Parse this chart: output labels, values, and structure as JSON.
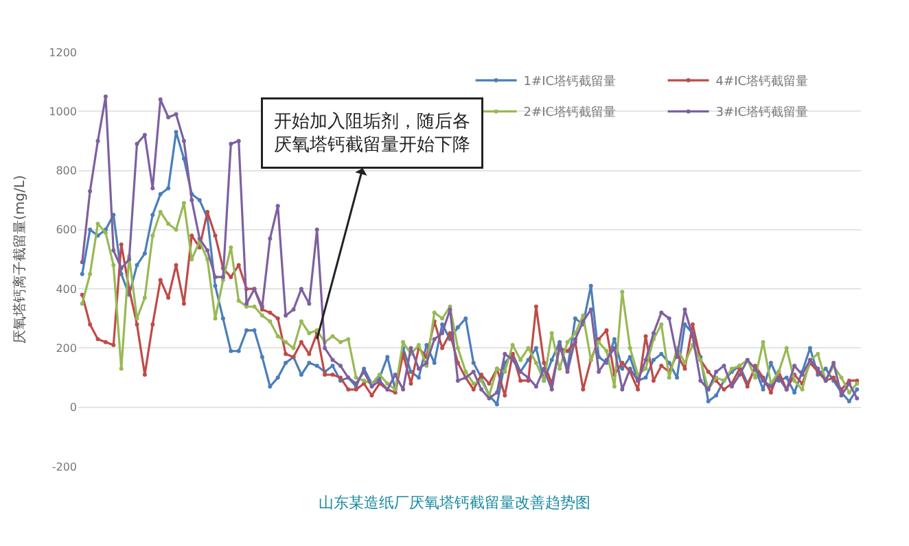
{
  "chart_data": {
    "type": "line",
    "title": "山东某造纸厂厌氧塔钙截留量改善趋势图",
    "ylabel": "厌氧塔钙离子截留量(mg/L)",
    "categories": [
      null,
      null,
      null,
      null,
      null,
      null,
      null,
      null,
      null,
      null,
      null,
      null,
      null,
      null,
      null,
      null,
      null,
      null,
      null,
      null,
      null,
      null,
      null,
      null,
      null,
      null,
      null,
      null,
      null,
      null,
      null,
      null,
      null,
      null,
      null,
      null,
      null,
      null,
      null,
      null,
      null,
      null,
      null,
      null,
      null,
      null,
      null,
      null,
      null,
      null,
      null,
      null,
      null,
      null,
      null,
      null,
      null,
      null,
      null,
      null,
      null,
      null,
      null,
      null,
      null,
      null,
      null,
      null,
      null,
      null,
      null,
      null,
      null,
      null,
      null,
      null,
      null,
      null,
      null,
      null,
      null,
      null,
      null,
      null,
      null,
      null,
      null,
      null,
      null,
      null,
      null,
      null,
      null,
      null,
      null,
      null,
      null,
      null,
      null,
      null
    ],
    "series": [
      {
        "name": "1#IC塔钙截留量",
        "color": "#4a7ebb",
        "values": [
          450,
          600,
          580,
          600,
          650,
          450,
          380,
          480,
          520,
          650,
          720,
          740,
          930,
          840,
          720,
          700,
          640,
          410,
          300,
          190,
          190,
          260,
          260,
          170,
          70,
          100,
          150,
          170,
          110,
          150,
          140,
          120,
          140,
          90,
          100,
          70,
          130,
          80,
          100,
          170,
          60,
          200,
          120,
          100,
          210,
          150,
          280,
          230,
          270,
          300,
          150,
          100,
          40,
          10,
          150,
          180,
          120,
          160,
          200,
          90,
          160,
          220,
          130,
          300,
          280,
          410,
          170,
          150,
          230,
          130,
          170,
          90,
          100,
          160,
          180,
          150,
          100,
          280,
          250,
          170,
          20,
          40,
          90,
          120,
          140,
          80,
          130,
          60,
          150,
          90,
          100,
          50,
          120,
          200,
          110,
          130,
          90,
          50,
          20,
          60
        ]
      },
      {
        "name": "4#IC塔钙截留量",
        "color": "#be4b48",
        "values": [
          380,
          280,
          230,
          220,
          210,
          550,
          400,
          280,
          110,
          280,
          430,
          370,
          480,
          350,
          580,
          540,
          660,
          580,
          470,
          440,
          480,
          400,
          400,
          330,
          320,
          300,
          180,
          170,
          220,
          180,
          250,
          110,
          110,
          100,
          60,
          60,
          80,
          40,
          80,
          60,
          50,
          180,
          80,
          200,
          170,
          290,
          200,
          250,
          150,
          100,
          60,
          110,
          80,
          130,
          40,
          180,
          90,
          90,
          340,
          150,
          80,
          200,
          190,
          220,
          60,
          160,
          230,
          260,
          110,
          150,
          120,
          60,
          240,
          90,
          140,
          120,
          180,
          130,
          280,
          160,
          120,
          90,
          60,
          80,
          130,
          70,
          140,
          100,
          50,
          120,
          60,
          110,
          80,
          150,
          120,
          90,
          100,
          60,
          90,
          90
        ]
      },
      {
        "name": "2#IC塔钙截留量",
        "color": "#98b954",
        "values": [
          350,
          450,
          620,
          590,
          480,
          130,
          510,
          300,
          370,
          580,
          660,
          620,
          600,
          690,
          500,
          560,
          500,
          300,
          430,
          540,
          360,
          340,
          340,
          310,
          290,
          240,
          220,
          200,
          290,
          250,
          260,
          220,
          240,
          220,
          230,
          100,
          90,
          80,
          110,
          80,
          60,
          220,
          180,
          210,
          140,
          320,
          300,
          340,
          200,
          120,
          80,
          90,
          40,
          130,
          120,
          210,
          160,
          200,
          150,
          90,
          250,
          130,
          220,
          250,
          310,
          160,
          220,
          190,
          70,
          390,
          200,
          110,
          130,
          230,
          280,
          100,
          200,
          150,
          210,
          160,
          60,
          100,
          90,
          130,
          140,
          160,
          100,
          220,
          80,
          120,
          200,
          90,
          60,
          160,
          180,
          90,
          140,
          100,
          50,
          80
        ]
      },
      {
        "name": "3#IC塔钙截留量",
        "color": "#7d60a0",
        "values": [
          490,
          730,
          900,
          1050,
          530,
          470,
          500,
          890,
          920,
          740,
          1040,
          980,
          990,
          900,
          700,
          570,
          530,
          440,
          440,
          890,
          900,
          350,
          400,
          340,
          570,
          680,
          310,
          330,
          400,
          350,
          600,
          200,
          160,
          140,
          100,
          80,
          120,
          70,
          90,
          60,
          110,
          60,
          200,
          130,
          150,
          230,
          250,
          330,
          90,
          100,
          120,
          60,
          30,
          50,
          180,
          160,
          120,
          100,
          70,
          130,
          60,
          210,
          120,
          230,
          290,
          330,
          120,
          160,
          200,
          60,
          130,
          90,
          160,
          250,
          320,
          300,
          170,
          330,
          240,
          90,
          60,
          120,
          140,
          70,
          110,
          160,
          130,
          90,
          70,
          100,
          60,
          140,
          110,
          160,
          130,
          90,
          150,
          40,
          80,
          30
        ]
      }
    ],
    "ylim": [
      -200,
      1200
    ],
    "yticks": [
      -200,
      0,
      200,
      400,
      600,
      800,
      1000,
      1200
    ],
    "grid": "y",
    "legend": "top right",
    "marker": "circle",
    "line_style": "solid",
    "tick_labels": "y",
    "annotations": [
      "开始加入阻垢剂，随后各",
      "厌氧塔钙截留量开始下降"
    ]
  }
}
